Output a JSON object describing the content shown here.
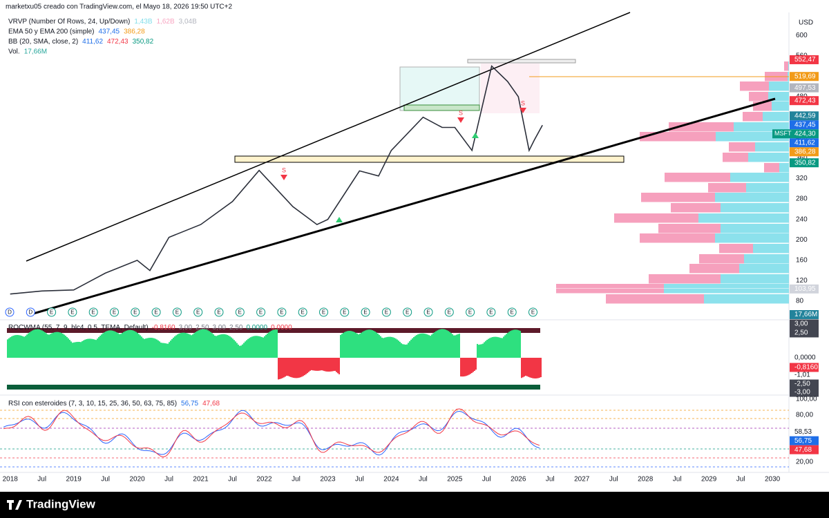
{
  "header": {
    "attribution": "marketxu05 creado con TradingView.com, el Mayo 18, 2026 19:50 UTC+2",
    "legend": [
      {
        "name": "VRVP (Number Of Rows, 24, Up/Down)",
        "values": [
          {
            "text": "1,43B",
            "color": "#80deea"
          },
          {
            "text": "1,62B",
            "color": "#f8a5c2"
          },
          {
            "text": "3,04B",
            "color": "#b2b5be"
          }
        ]
      },
      {
        "name": "EMA 50 y EMA 200 (simple)",
        "values": [
          {
            "text": "437,45",
            "color": "#1e6ee8"
          },
          {
            "text": "386,28",
            "color": "#f29b18"
          }
        ]
      },
      {
        "name": "BB (20, SMA, close, 2)",
        "values": [
          {
            "text": "411,62",
            "color": "#1e6ee8"
          },
          {
            "text": "472,43",
            "color": "#f23645"
          },
          {
            "text": "350,82",
            "color": "#089981"
          }
        ]
      },
      {
        "name": "Vol.",
        "values": [
          {
            "text": "17,66M",
            "color": "#26a69a"
          }
        ]
      }
    ]
  },
  "price_chart": {
    "type": "line",
    "currency": "USD",
    "symbol": "MSFT",
    "countdown": "4d 3h",
    "earnings_label": "E",
    "dividend_label": "D",
    "signal_label": "S",
    "color": "#2a2e39",
    "x": [
      2018.0,
      2018.5,
      2019.0,
      2019.5,
      2020.0,
      2020.2,
      2020.5,
      2021.0,
      2021.5,
      2021.92,
      2022.45,
      2022.83,
      2023.0,
      2023.5,
      2023.8,
      2024.0,
      2024.5,
      2024.8,
      2025.0,
      2025.27,
      2025.58,
      2025.83,
      2026.0,
      2026.17,
      2026.25,
      2026.38
    ],
    "values": [
      94,
      100,
      102,
      135,
      160,
      140,
      205,
      230,
      275,
      336,
      265,
      230,
      240,
      335,
      325,
      375,
      440,
      420,
      420,
      375,
      540,
      510,
      480,
      375,
      395,
      424.3
    ],
    "xlim": [
      2017.84,
      2030.26
    ],
    "ylim": [
      45,
      645
    ],
    "yticks": [
      80,
      120,
      160,
      200,
      240,
      280,
      320,
      360,
      400,
      440,
      480,
      520,
      560,
      600
    ],
    "xticks": [
      2018,
      {
        "value": 2018.5,
        "label": "Jul"
      },
      2019,
      {
        "value": 2019.5,
        "label": "Jul"
      },
      2020,
      {
        "value": 2020.5,
        "label": "Jul"
      },
      2021,
      {
        "value": 2021.5,
        "label": "Jul"
      },
      2022,
      {
        "value": 2022.5,
        "label": "Jul"
      },
      2023,
      {
        "value": 2023.5,
        "label": "Jul"
      },
      2024,
      {
        "value": 2024.5,
        "label": "Jul"
      },
      2025,
      {
        "value": 2025.5,
        "label": "Jul"
      },
      2026,
      {
        "value": 2026.5,
        "label": "Jul"
      },
      2027,
      {
        "value": 2027.5,
        "label": "Jul"
      },
      2028,
      {
        "value": 2028.5,
        "label": "Jul"
      },
      2029,
      {
        "value": 2029.5,
        "label": "Jul"
      },
      2030
    ],
    "badges": [
      {
        "value": 552.47,
        "label": "552,47",
        "color": "#f23645"
      },
      {
        "value": 519.69,
        "label": "519,69",
        "color": "#f29b18"
      },
      {
        "value": 497.53,
        "label": "497,53",
        "color": "#b2b5be"
      },
      {
        "value": 472.43,
        "label": "472,43",
        "color": "#f23645"
      },
      {
        "value": 442.59,
        "label": "442,59",
        "color": "#22839b"
      },
      {
        "value": 437.45,
        "label": "437,45",
        "color": "#1e6ee8"
      },
      {
        "value": 424.3,
        "label": "424,30",
        "color": "#089981"
      },
      {
        "value": 411.62,
        "label": "411,62",
        "color": "#1e6ee8"
      },
      {
        "value": 386.28,
        "label": "386,28",
        "color": "#f29b18"
      },
      {
        "value": 350.82,
        "label": "350,82",
        "color": "#089981"
      },
      {
        "value": 103.95,
        "label": "103,95",
        "color": "#d1d4dc"
      }
    ],
    "volume_badge": {
      "label": "17,66M",
      "color": "#22839b"
    }
  },
  "roc_pane": {
    "title": "ROCWMA (55, 7, 9, hlc4, 0.5, TEMA, Default)",
    "values": [
      {
        "text": "-0,8160",
        "color": "#f23645"
      },
      {
        "text": "3,00",
        "color": "#787b86"
      },
      {
        "text": "2,50",
        "color": "#787b86"
      },
      {
        "text": "3,00",
        "color": "#787b86"
      },
      {
        "text": "2,50",
        "color": "#787b86"
      },
      {
        "text": "0,0000",
        "color": "#089981"
      },
      {
        "text": "0,0000",
        "color": "#f23645"
      }
    ],
    "axis_labels": [
      {
        "text": "3,00",
        "color": "#434651"
      },
      {
        "text": "2,50",
        "color": "#434651"
      },
      {
        "text": "0,0000"
      },
      {
        "text": "-0,8160",
        "color": "#f23645"
      },
      {
        "text": "-1,01"
      },
      {
        "text": "-2,50",
        "color": "#434651"
      },
      {
        "text": "-3,00",
        "color": "#434651"
      }
    ]
  },
  "rsi_pane": {
    "title": "RSI con esteroides (7, 3, 10, 15, 25, 36, 50, 63, 75, 85)",
    "values": [
      {
        "text": "56,75",
        "color": "#1e6ee8"
      },
      {
        "text": "47,68",
        "color": "#f23645"
      }
    ],
    "ylim": [
      6.7,
      105.3
    ],
    "yticks": [
      {
        "value": 100,
        "label": "100,00"
      },
      {
        "value": 80,
        "label": "80,00"
      },
      {
        "value": 20,
        "label": "20,00"
      }
    ],
    "badges": [
      {
        "value": 58.53,
        "label": "58,53"
      },
      {
        "value": 56.75,
        "label": "56,75",
        "color": "#1e6ee8"
      },
      {
        "value": 47.68,
        "label": "47,68",
        "color": "#f23645"
      }
    ]
  },
  "footer": {
    "brand": "TradingView"
  }
}
